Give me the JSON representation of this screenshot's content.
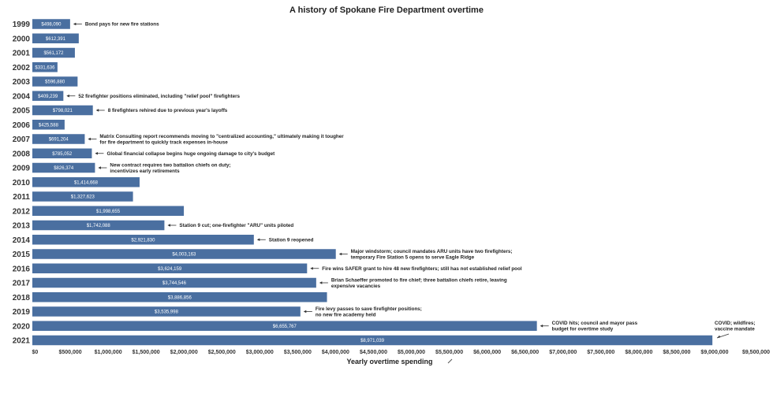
{
  "chart_data": {
    "type": "bar",
    "orientation": "horizontal",
    "title": "A history of Spokane Fire Department overtime",
    "xlabel": "Yearly overtime spending",
    "ylabel": "",
    "xlim": [
      0,
      9500000
    ],
    "x_ticks": [
      0,
      500000,
      1000000,
      1500000,
      2000000,
      2500000,
      3000000,
      3500000,
      4000000,
      4500000,
      5000000,
      5500000,
      6000000,
      6500000,
      7000000,
      7500000,
      8000000,
      8500000,
      9000000,
      9500000
    ],
    "x_tick_labels": [
      "$0",
      "$500,000",
      "$1,000,000",
      "$1,500,000",
      "$2,000,000",
      "$2,500,000",
      "$3,000,000",
      "$3,500,000",
      "$4,000,000",
      "$4,500,000",
      "$5,000,000",
      "$5,500,000",
      "$6,000,000",
      "$6,500,000",
      "$7,000,000",
      "$7,500,000",
      "$8,000,000",
      "$8,500,000",
      "$9,000,000",
      "$9,500,000"
    ],
    "bar_color": "#4a6fa0",
    "grid": false,
    "categories": [
      "1999",
      "2000",
      "2001",
      "2002",
      "2003",
      "2004",
      "2005",
      "2006",
      "2007",
      "2008",
      "2009",
      "2010",
      "2011",
      "2012",
      "2013",
      "2014",
      "2015",
      "2016",
      "2017",
      "2018",
      "2019",
      "2020",
      "2021"
    ],
    "values": [
      498090,
      612391,
      561172,
      331636,
      596880,
      409239,
      798021,
      425588,
      691204,
      785052,
      826374,
      1414668,
      1327623,
      1998655,
      1742088,
      2921830,
      4003163,
      3624159,
      3744546,
      3886856,
      3535998,
      6655767,
      8971039
    ],
    "value_labels": [
      "$498,090",
      "$612,391",
      "$561,172",
      "$331,636",
      "$596,880",
      "$409,239",
      "$798,021",
      "$425,588",
      "$691,204",
      "$785,052",
      "$826,374",
      "$1,414,668",
      "$1,327,623",
      "$1,998,655",
      "$1,742,088",
      "$2,921,830",
      "$4,003,163",
      "$3,624,159",
      "$3,744,546",
      "$3,886,856",
      "$3,535,998",
      "$6,655,767",
      "$8,971,039"
    ],
    "annotations": [
      {
        "year": "1999",
        "lines": [
          "Bond pays for new fire stations"
        ]
      },
      {
        "year": "2004",
        "lines": [
          "52 firefighter positions eliminated, including \"relief pool\" firefighters"
        ]
      },
      {
        "year": "2005",
        "lines": [
          "8 firefighters rehired due to previous year's layoffs"
        ]
      },
      {
        "year": "2007",
        "lines": [
          "Matrix Consulting report recommends moving to \"centralized accounting,\" ultimately making it tougher",
          "for fire department to quickly track expenses in-house"
        ]
      },
      {
        "year": "2008",
        "lines": [
          "Global financial collapse begins huge ongoing damage to city's budget"
        ]
      },
      {
        "year": "2009",
        "lines": [
          "New contract requires two battalion chiefs on duty;",
          "incentivizes early retirements"
        ]
      },
      {
        "year": "2013",
        "lines": [
          "Station 9 cut; one-firefighter \"ARU\" units piloted"
        ]
      },
      {
        "year": "2014",
        "lines": [
          "Station 9 reopened"
        ]
      },
      {
        "year": "2015",
        "lines": [
          "Major windstorm; council mandates ARU units have two firefighters;",
          "temporary Fire Station 5 opens to serve Eagle Ridge"
        ]
      },
      {
        "year": "2016",
        "lines": [
          "Fire wins SAFER grant to hire 48 new firefighters; still has not established relief pool"
        ]
      },
      {
        "year": "2017",
        "lines": [
          "Brian Schaeffer promoted to fire chief; three battalion chiefs retire, leaving",
          "expensive vacancies"
        ]
      },
      {
        "year": "2019",
        "lines": [
          "Fire levy passes to save firefighter positions;",
          "no new fire academy held"
        ]
      },
      {
        "year": "2020",
        "lines": [
          "COVID hits; council and mayor pass",
          "budget for overtime study"
        ]
      },
      {
        "year": "2021",
        "lines": [
          "COVID; wildfires;",
          "vaccine mandate"
        ],
        "placement": "above-right"
      }
    ]
  }
}
